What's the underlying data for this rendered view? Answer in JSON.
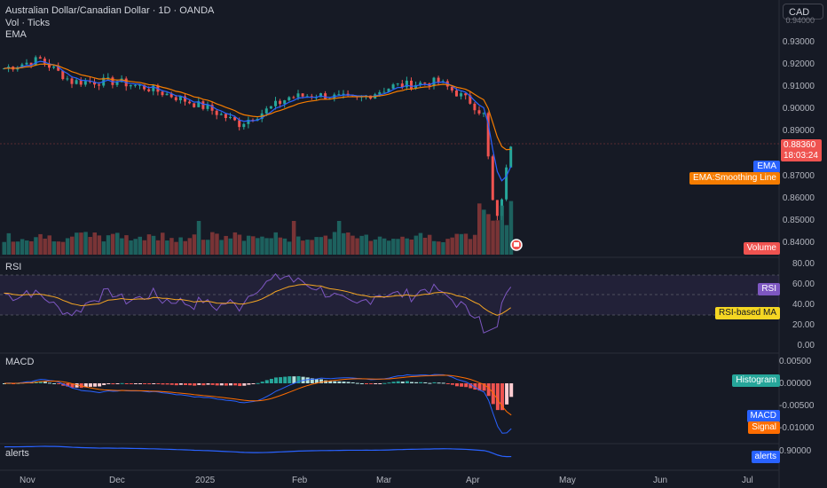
{
  "header": {
    "symbol_line": "Australian Dollar/Canadian Dollar · 1D · OANDA",
    "vol_label": "Vol · Ticks",
    "ema_label": "EMA",
    "currency_button": "CAD"
  },
  "price_axis": {
    "ticks": [
      "0.93000",
      "0.92000",
      "0.91000",
      "0.90000",
      "0.89000",
      "0.87000",
      "0.86000",
      "0.85000",
      "0.84000"
    ],
    "cut_tick": "0.94000",
    "last_price": "0.88360",
    "countdown": "18:03:24",
    "tag_ema": "EMA",
    "tag_smoothing": "EMA:Smoothing Line",
    "tag_volume": "Volume"
  },
  "rsi": {
    "title": "RSI",
    "ticks": [
      "80.00",
      "60.00",
      "40.00",
      "20.00",
      "0.00"
    ],
    "tag_rsi": "RSI",
    "tag_ma": "RSI-based MA"
  },
  "macd": {
    "title": "MACD",
    "ticks": [
      "0.00500",
      "0.00000",
      "-0.00500",
      "-0.01000"
    ],
    "tag_hist": "Histogram",
    "tag_macd": "MACD",
    "tag_signal": "Signal"
  },
  "alerts": {
    "title": "alerts",
    "tick": "0.90000",
    "tag": "alerts"
  },
  "time_axis": [
    "Nov",
    "Dec",
    "2025",
    "Feb",
    "Mar",
    "Apr",
    "May",
    "Jun",
    "Jul"
  ],
  "colors": {
    "bg": "#161a25",
    "up": "#26a69a",
    "down": "#ef5350",
    "ema": "#2962ff",
    "smoothing": "#f57c00",
    "rsi": "#7e57c2",
    "rsi_ma": "#f5a623",
    "signal": "#ff6d00",
    "alerts_line": "#2962ff",
    "grid": "#2a2e39"
  },
  "icons": {
    "calendar_marker": "flag-icon"
  }
}
